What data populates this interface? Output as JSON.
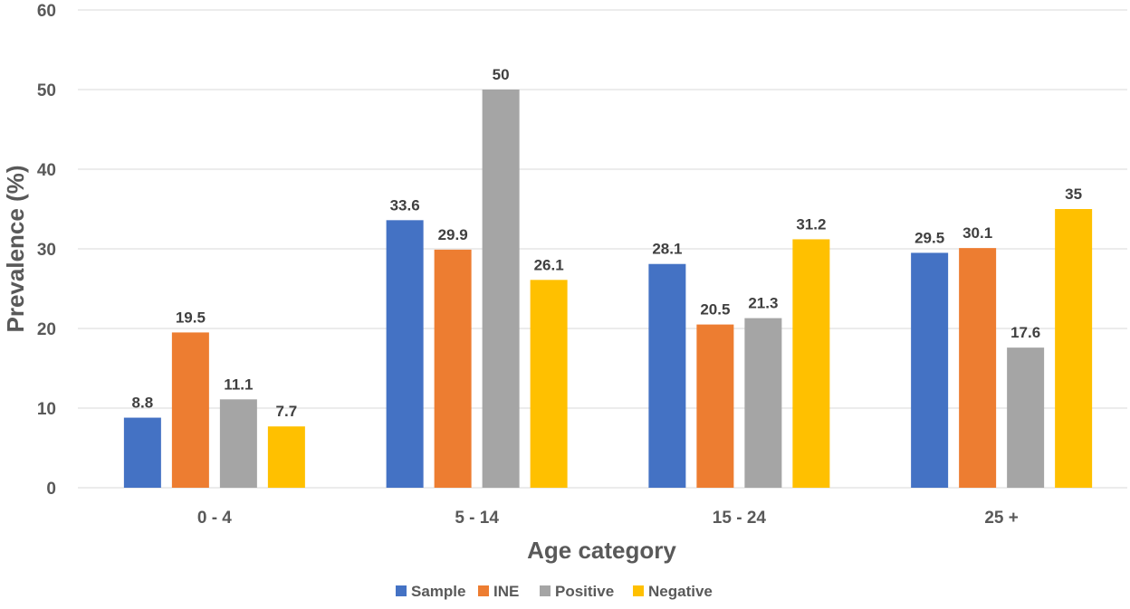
{
  "chart_data": {
    "type": "bar",
    "title": "",
    "xlabel": "Age category",
    "ylabel": "Prevalence (%)",
    "ylim": [
      0,
      60
    ],
    "yticks": [
      0,
      10,
      20,
      30,
      40,
      50,
      60
    ],
    "grid": true,
    "legend_position": "bottom",
    "categories": [
      "0 - 4",
      "5 - 14",
      "15 - 24",
      "25 +"
    ],
    "series": [
      {
        "name": "Sample",
        "color": "#4472C4",
        "values": [
          8.8,
          33.6,
          28.1,
          29.5
        ]
      },
      {
        "name": "INE",
        "color": "#ED7D31",
        "values": [
          19.5,
          29.9,
          20.5,
          30.1
        ]
      },
      {
        "name": "Positive",
        "color": "#A5A5A5",
        "values": [
          11.1,
          50,
          21.3,
          17.6
        ]
      },
      {
        "name": "Negative",
        "color": "#FFC000",
        "values": [
          7.7,
          26.1,
          31.2,
          35
        ]
      }
    ]
  }
}
